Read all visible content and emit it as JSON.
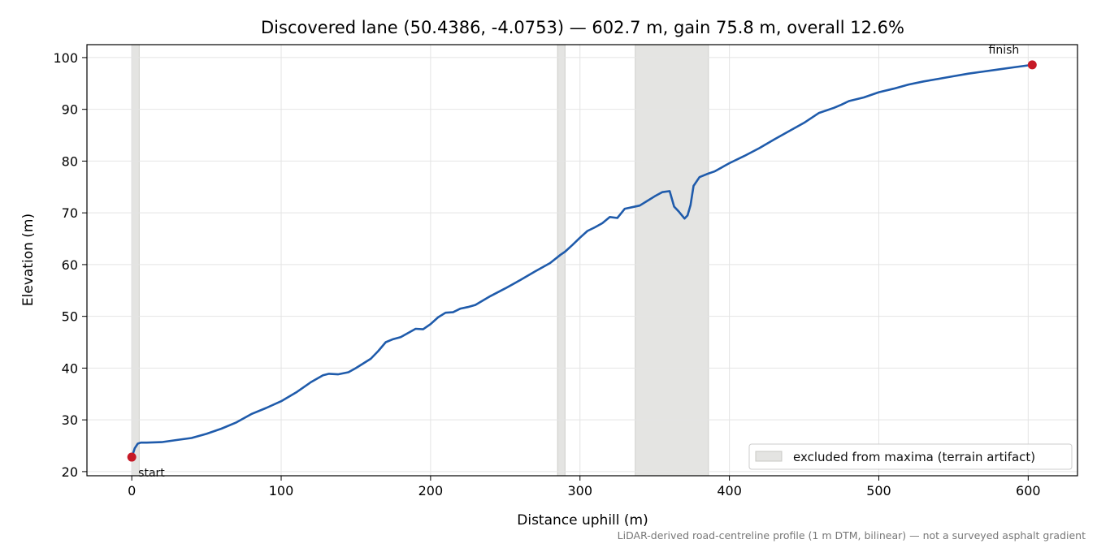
{
  "chart_data": {
    "type": "line",
    "title": "Discovered lane (50.4386, -4.0753) — 602.7 m, gain 75.8 m, overall 12.6%",
    "xlabel": "Distance uphill (m)",
    "ylabel": "Elevation (m)",
    "xlim": [
      -30,
      633
    ],
    "ylim": [
      19.2,
      102.5
    ],
    "xticks": [
      0,
      100,
      200,
      300,
      400,
      500,
      600
    ],
    "yticks": [
      20,
      30,
      40,
      50,
      60,
      70,
      80,
      90,
      100
    ],
    "grid": true,
    "legend_position": "lower right",
    "line_color": "#1f5bab",
    "marker_color": "#c61a27",
    "shade_color": "#e4e4e2",
    "series": [
      {
        "x": [
          0,
          2,
          4,
          6,
          10,
          20,
          30,
          40,
          50,
          60,
          70,
          80,
          90,
          100,
          110,
          120,
          128,
          132,
          138,
          145,
          150,
          160,
          165,
          170,
          175,
          180,
          185,
          190,
          195,
          200,
          205,
          210,
          215,
          220,
          225,
          230,
          240,
          250,
          260,
          270,
          280,
          287,
          290,
          295,
          300,
          305,
          310,
          315,
          320,
          325,
          330,
          335,
          340,
          345,
          350,
          355,
          360,
          363,
          366,
          370,
          372,
          374,
          376,
          380,
          385,
          390,
          400,
          410,
          420,
          430,
          440,
          450,
          460,
          465,
          470,
          475,
          480,
          490,
          500,
          510,
          520,
          530,
          540,
          550,
          560,
          570,
          580,
          590,
          600,
          602.7
        ],
        "y": [
          22.8,
          24.5,
          25.4,
          25.6,
          25.6,
          25.7,
          26.1,
          26.5,
          27.3,
          28.3,
          29.5,
          31.1,
          32.3,
          33.6,
          35.3,
          37.3,
          38.6,
          38.9,
          38.8,
          39.2,
          40.0,
          41.8,
          43.3,
          45.0,
          45.6,
          46.0,
          46.8,
          47.6,
          47.5,
          48.5,
          49.8,
          50.7,
          50.8,
          51.5,
          51.8,
          52.2,
          53.9,
          55.4,
          57.0,
          58.7,
          60.3,
          61.9,
          62.5,
          63.8,
          65.2,
          66.5,
          67.2,
          68.0,
          69.2,
          69.0,
          70.8,
          71.1,
          71.4,
          72.3,
          73.2,
          74.0,
          74.2,
          71.2,
          70.3,
          68.9,
          69.5,
          71.5,
          75.2,
          76.9,
          77.5,
          78.0,
          79.6,
          81.0,
          82.5,
          84.2,
          85.8,
          87.4,
          89.3,
          89.8,
          90.3,
          90.9,
          91.6,
          92.3,
          93.3,
          94.0,
          94.8,
          95.4,
          95.9,
          96.4,
          96.9,
          97.3,
          97.7,
          98.1,
          98.5,
          98.6
        ]
      }
    ],
    "markers": [
      {
        "label": "start",
        "x": 0,
        "y": 22.8
      },
      {
        "label": "finish",
        "x": 602.7,
        "y": 98.6
      }
    ],
    "excluded_ranges": [
      [
        0,
        5
      ],
      [
        285,
        290
      ],
      [
        337,
        386
      ]
    ],
    "legend": [
      {
        "label": "excluded from maxima (terrain artifact)"
      }
    ],
    "footnote": "LiDAR-derived road-centreline profile (1 m DTM, bilinear) — not a surveyed asphalt gradient"
  }
}
